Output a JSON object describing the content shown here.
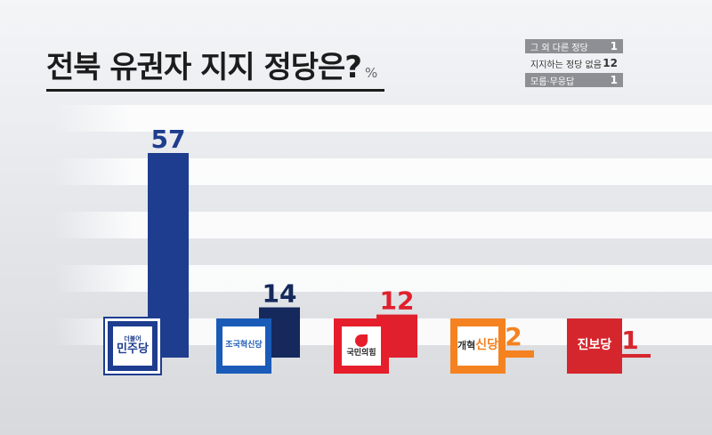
{
  "header": {
    "title": "전북 유권자 지지 정당은?",
    "unit": "%"
  },
  "others": [
    {
      "label": "그 외 다른 정당",
      "value": "1",
      "shaded": true
    },
    {
      "label": "지지하는 정당 없음",
      "value": "12",
      "shaded": false
    },
    {
      "label": "모름·무응답",
      "value": "1",
      "shaded": true
    }
  ],
  "chart_data": {
    "type": "bar",
    "categories": [
      "민주당",
      "조국혁신당",
      "국민의힘",
      "개혁신당",
      "진보당"
    ],
    "values": [
      57,
      14,
      12,
      2,
      1
    ],
    "value_labels": [
      "57",
      "14",
      "12",
      "2",
      "1"
    ],
    "ylim": [
      0,
      57
    ],
    "grid": false,
    "unit": "%",
    "title": "전북 유권자 지지 정당은?",
    "colors": [
      "#1e3d8f",
      "#15295c",
      "#e0202d",
      "#f58220",
      "#d6262d"
    ],
    "label_colors": [
      "#1e3d8f",
      "#15295c",
      "#e0202d",
      "#f58220",
      "#d6262d"
    ]
  },
  "logos": [
    {
      "icon": "democratic-party-logo",
      "small": "더불어",
      "text": "민주당"
    },
    {
      "icon": "rebuilding-korea-party-logo",
      "text": "조국혁신당"
    },
    {
      "icon": "people-power-party-logo",
      "text": "국민의힘"
    },
    {
      "icon": "reform-party-logo",
      "text": "개혁",
      "accent": "신당"
    },
    {
      "icon": "progressive-party-logo",
      "text": "진보당"
    }
  ]
}
